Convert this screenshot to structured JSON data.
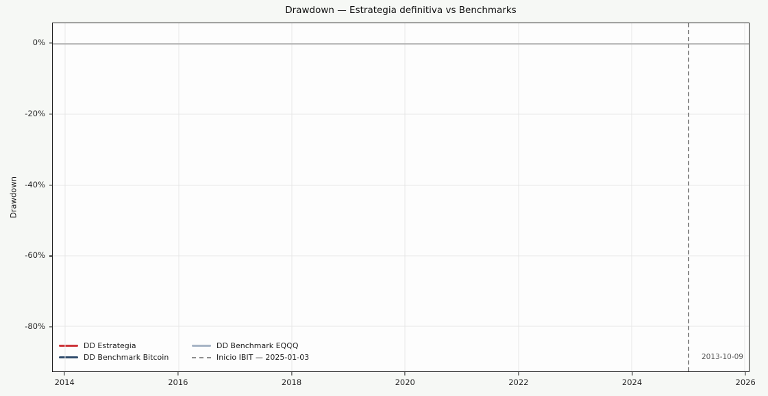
{
  "figure": {
    "background": "#f6f8f5",
    "plot_background": "#fdfdfd",
    "border_color": "#1a1a1a",
    "grid_color": "#e7e7e7"
  },
  "chart_data": {
    "type": "line",
    "title": "Drawdown — Estrategia definitiva vs Benchmarks",
    "xlabel": "",
    "ylabel": "Drawdown",
    "x_ticks": [
      2014,
      2016,
      2018,
      2020,
      2022,
      2024,
      2026
    ],
    "y_ticks": [
      {
        "value": 0,
        "label": "0%"
      },
      {
        "value": -20,
        "label": "-20%"
      },
      {
        "value": -40,
        "label": "-40%"
      },
      {
        "value": -60,
        "label": "-60%"
      },
      {
        "value": -80,
        "label": "-80%"
      }
    ],
    "xlim": [
      2013.78,
      2026.07
    ],
    "ylim": [
      -92.7,
      5.8
    ],
    "grid": true,
    "legend_position": "lower left, 2 columns, no frame",
    "zero_line": {
      "y": 0,
      "color": "#b0b0b0"
    },
    "series": [
      {
        "name": "DD Estrategia",
        "color": "#cc3236",
        "line_style": "solid",
        "values_note": "no visible deviation from 0% — line coincides with the gray 0% baseline"
      },
      {
        "name": "DD Benchmark Bitcoin",
        "color": "#2e4a6b",
        "line_style": "solid",
        "values_note": "no visible deviation from 0% — line coincides with the gray 0% baseline"
      },
      {
        "name": "DD Benchmark EQQQ",
        "color": "#a5b3c4",
        "line_style": "solid",
        "values_note": "no visible deviation from 0% — line coincides with the gray 0% baseline"
      }
    ],
    "vline": {
      "x": 2025.01,
      "x_date": "2025-01-03",
      "color": "#8c8c8c",
      "line_style": "dashed",
      "legend_label": "Inicio IBIT — 2025-01-03"
    },
    "annotation": {
      "text": "2013-10-09",
      "color": "#595959",
      "x_approx": 2025.2,
      "y_approx": -88.5
    }
  }
}
